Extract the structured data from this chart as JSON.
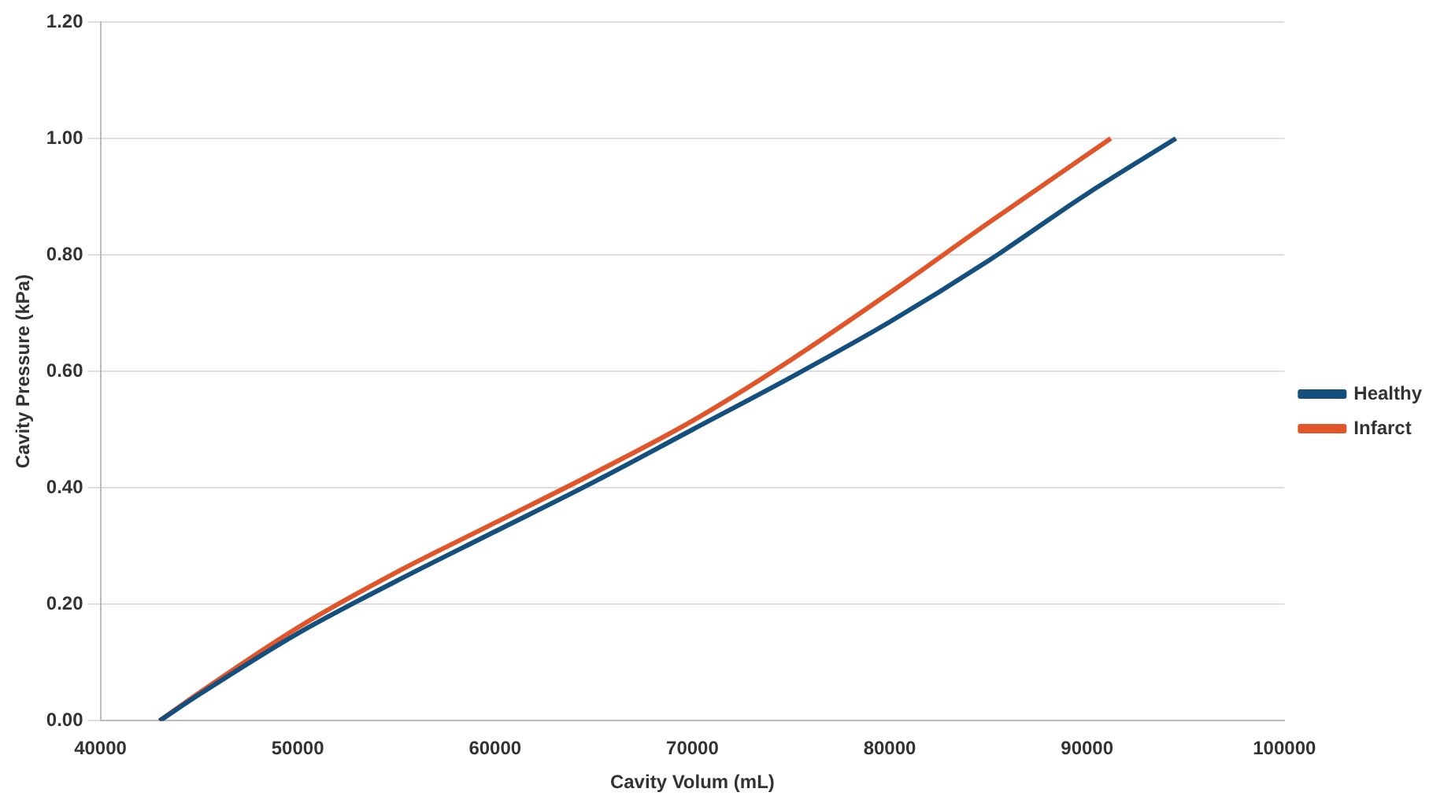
{
  "chart_data": {
    "type": "line",
    "xlabel": "Cavity Volum (mL)",
    "ylabel": "Cavity Pressure (kPa)",
    "xlim": [
      40000,
      100000
    ],
    "xticks": [
      40000,
      50000,
      60000,
      70000,
      80000,
      90000,
      100000
    ],
    "ylim": [
      0,
      1.2
    ],
    "yticks": [
      {
        "value": 0,
        "label": "0.00"
      },
      {
        "value": 0.2,
        "label": "0.20"
      },
      {
        "value": 0.4,
        "label": "0.40"
      },
      {
        "value": 0.6,
        "label": "0.60"
      },
      {
        "value": 0.8,
        "label": "0.80"
      },
      {
        "value": 1,
        "label": "1.00"
      },
      {
        "value": 1.2,
        "label": "1.20"
      }
    ],
    "grid": "y",
    "legend": "right",
    "marker": "none",
    "line_style": "solid",
    "series": [
      {
        "name": "Healthy",
        "color": "#154f7e",
        "x": [
          43000,
          45000,
          50000,
          55000,
          60000,
          65000,
          70000,
          75000,
          80000,
          85000,
          90000,
          94500
        ],
        "values": [
          0,
          0.045,
          0.15,
          0.24,
          0.325,
          0.41,
          0.5,
          0.59,
          0.685,
          0.79,
          0.905,
          1.0
        ]
      },
      {
        "name": "Infarct",
        "color": "#e0552a",
        "x": [
          43000,
          45000,
          50000,
          55000,
          60000,
          65000,
          70000,
          75000,
          80000,
          85000,
          91200
        ],
        "values": [
          0,
          0.048,
          0.16,
          0.255,
          0.34,
          0.425,
          0.515,
          0.62,
          0.735,
          0.855,
          1.0
        ]
      }
    ]
  }
}
